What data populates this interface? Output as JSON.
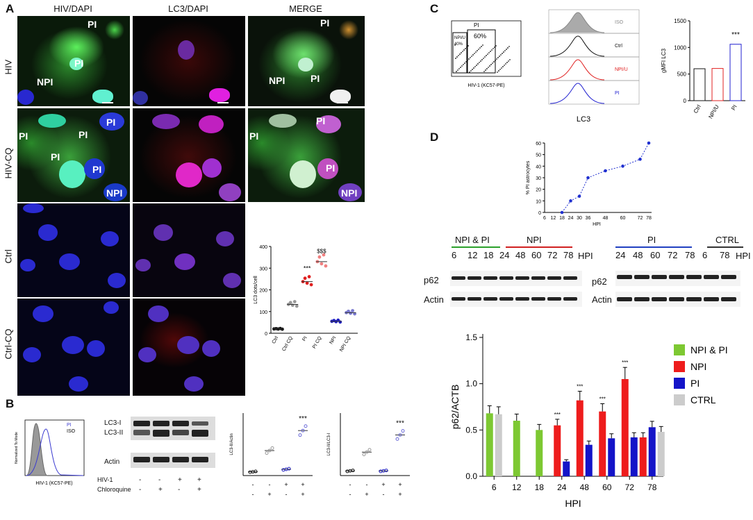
{
  "panels": {
    "A": "A",
    "B": "B",
    "C": "C",
    "D": "D"
  },
  "A": {
    "col_headers": [
      "HIV/DAPI",
      "LC3/DAPI",
      "MERGE"
    ],
    "row_labels": [
      "HIV",
      "HIV-CQ",
      "Ctrl",
      "Ctrl-CQ"
    ],
    "hiv_row_labels": [
      "PI",
      "PI",
      "NPI"
    ],
    "merge_row1_labels": [
      "PI",
      "PI",
      "NPI"
    ],
    "hivcq_row_labels": [
      "PI",
      "PI",
      "PI",
      "PI",
      "PI",
      "NPI"
    ],
    "merge_row2_labels": [
      "PI",
      "PI",
      "PI",
      "NPI"
    ],
    "chart_data": {
      "type": "scatter",
      "ylabel": "LC3 dots/cell",
      "categories": [
        "Ctrl",
        "Ctrl CQ",
        "PI",
        "PI CQ",
        "NPI",
        "NPI CQ"
      ],
      "means": [
        20,
        133,
        238,
        330,
        55,
        95
      ],
      "ylim": [
        0,
        400
      ],
      "yticks": [
        "0",
        "100",
        "200",
        "300",
        "400"
      ],
      "annotations": [
        "***",
        "$$$"
      ]
    }
  },
  "B": {
    "flow_legend": [
      "PI",
      "ISO"
    ],
    "flow_xlabel": "HIV-1 (KC57-PE)",
    "flow_ylabel": "Normalized To Mode",
    "blot_labels": [
      "LC3-I",
      "LC3-II",
      "Actin"
    ],
    "row_labels": [
      "HIV-1",
      "Chloroquine"
    ],
    "hiv_signs": [
      "-",
      "-",
      "+",
      "+"
    ],
    "cq_signs": [
      "-",
      "+",
      "-",
      "+"
    ],
    "chart1": {
      "ylabel": "LC3-II/Actin",
      "values": [
        0.3,
        2.0,
        0.5,
        3.6
      ],
      "ylim": [
        0,
        5
      ],
      "stars": "***"
    },
    "chart2": {
      "ylabel": "LC3-II/LC3-I",
      "values": [
        0.3,
        1.5,
        0.3,
        2.6
      ],
      "ylim": [
        0,
        4
      ],
      "stars": "***"
    }
  },
  "C": {
    "gate_labels": [
      "NPI/U",
      "40%",
      "PI",
      "60%"
    ],
    "flow_xlabel": "HIV-1 (KC57-PE)",
    "hist_labels": [
      "ISO",
      "Ctrl",
      "NPI/U",
      "PI"
    ],
    "hist_xlabel": "LC3",
    "chart_data": {
      "type": "bar",
      "ylabel": "gMFI LC3",
      "categories": [
        "Ctrl",
        "NPI/U",
        "PI"
      ],
      "values": [
        600,
        605,
        1060
      ],
      "ylim": [
        0,
        1500
      ],
      "yticks": [
        "0",
        "500",
        "1000",
        "1500"
      ],
      "stars": "***"
    }
  },
  "D": {
    "line_chart": {
      "type": "line",
      "ylabel": "% PI astrocytes",
      "xlabel": "HPI",
      "x": [
        18,
        24,
        30,
        36,
        48,
        60,
        72,
        78
      ],
      "y": [
        0,
        10,
        14,
        30,
        36,
        40,
        46,
        60
      ],
      "xticks": [
        "6",
        "12",
        "18",
        "24",
        "30",
        "36",
        "48",
        "60",
        "72",
        "78"
      ],
      "ylim": [
        0,
        60
      ],
      "yticks": [
        "0",
        "10",
        "20",
        "30",
        "40",
        "50",
        "60"
      ]
    },
    "blot_left": {
      "group1": "NPI & PI",
      "group2": "NPI",
      "hpi": [
        "6",
        "12",
        "18",
        "24",
        "48",
        "60",
        "72",
        "78"
      ],
      "hpi_label": "HPI",
      "rows": [
        "p62",
        "Actin"
      ]
    },
    "blot_right": {
      "group1": "PI",
      "group2": "CTRL",
      "hpi": [
        "24",
        "48",
        "60",
        "72",
        "78",
        "6",
        "78"
      ],
      "hpi_label": "HPI",
      "rows": [
        "p62",
        "Actin"
      ]
    },
    "chart_data": {
      "type": "bar",
      "ylabel": "p62/ACTB",
      "xlabel": "HPI",
      "categories": [
        "6",
        "12",
        "18",
        "24",
        "48",
        "60",
        "72",
        "78"
      ],
      "series": [
        {
          "name": "NPI & PI",
          "color": "#7dc832",
          "values": [
            0.68,
            0.6,
            0.5,
            null,
            null,
            null,
            null,
            null
          ]
        },
        {
          "name": "NPI",
          "color": "#ee1c1c",
          "values": [
            null,
            null,
            null,
            0.55,
            0.82,
            0.7,
            1.05,
            0.42
          ]
        },
        {
          "name": "PI",
          "color": "#1414c8",
          "values": [
            null,
            null,
            null,
            0.16,
            0.34,
            0.41,
            0.42,
            0.53
          ]
        },
        {
          "name": "CTRL",
          "color": "#cccccc",
          "values": [
            0.67,
            null,
            null,
            null,
            null,
            null,
            null,
            0.48
          ]
        }
      ],
      "ylim": [
        0,
        1.5
      ],
      "yticks": [
        "0.0",
        "0.5",
        "1.0",
        "1.5"
      ],
      "stars": "***"
    }
  }
}
